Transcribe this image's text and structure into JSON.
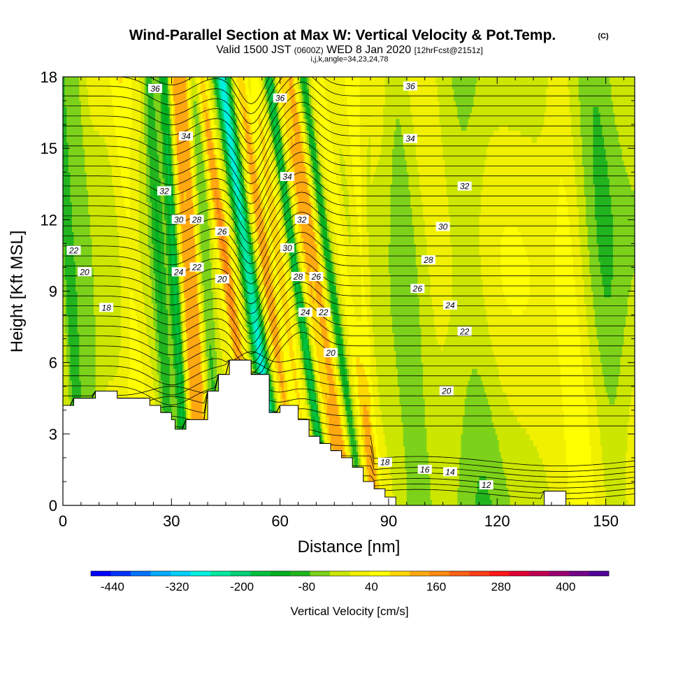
{
  "title": {
    "main": "Wind-Parallel Section at Max W: Vertical Velocity & Pot.Temp.",
    "copyright": "(C)",
    "line2_a": "Valid 1500 JST",
    "line2_b": "(0600Z)",
    "line2_c": "WED 8 Jan 2020",
    "line2_d": "[12hrFcst@2151z]",
    "line3": "i,j,k,angle=34,23,24,78"
  },
  "chart_data": {
    "type": "heatmap",
    "title": "Wind-Parallel Section at Max W: Vertical Velocity & Pot.Temp.",
    "xlabel": "Distance [nm]",
    "ylabel": "Height [Kft MSL]",
    "xlim": [
      0,
      158
    ],
    "ylim": [
      0,
      18
    ],
    "xticks": [
      0,
      30,
      60,
      90,
      120,
      150
    ],
    "yticks": [
      0,
      3,
      6,
      9,
      12,
      15,
      18
    ],
    "colorbar": {
      "label": "Vertical Velocity [cm/s]",
      "tick_labels": [
        "-440",
        "-320",
        "-200",
        "-80",
        "40",
        "160",
        "280",
        "400"
      ],
      "tick_values": [
        -440,
        -320,
        -200,
        -80,
        40,
        160,
        280,
        400
      ],
      "range": [
        -480,
        480
      ],
      "colors": [
        "#0000ff",
        "#0033ff",
        "#0073ff",
        "#00a8ff",
        "#00d0ff",
        "#00f0e0",
        "#00e8a0",
        "#00d078",
        "#00c040",
        "#00b020",
        "#22b41e",
        "#7cd21a",
        "#cce600",
        "#f0f000",
        "#ffff00",
        "#ffd800",
        "#ffa810",
        "#ff8810",
        "#ff6018",
        "#ff3c18",
        "#ff1818",
        "#e00030",
        "#c00050",
        "#9c0070",
        "#740088",
        "#500098"
      ]
    },
    "velocity_columns": [
      {
        "x": 2,
        "w": 1.8,
        "v": -100
      },
      {
        "x": 6,
        "w": 2.5,
        "v": -60
      },
      {
        "x": 19,
        "w": 3.0,
        "v": 60
      },
      {
        "x": 27,
        "w": 2.0,
        "v": -100
      },
      {
        "x": 31,
        "w": 1.4,
        "v": -150
      },
      {
        "x": 34,
        "w": 1.4,
        "v": 120
      },
      {
        "x": 36.5,
        "w": 1.4,
        "v": 130
      },
      {
        "x": 40,
        "w": 1.8,
        "v": -80
      },
      {
        "x": 46,
        "w": 1.8,
        "v": 140
      },
      {
        "x": 52,
        "w": 2.0,
        "v": -280
      },
      {
        "x": 57,
        "w": 1.8,
        "v": 120
      },
      {
        "x": 61,
        "w": 1.5,
        "v": 80
      },
      {
        "x": 65,
        "w": 1.2,
        "v": -170
      },
      {
        "x": 68.5,
        "w": 1.5,
        "v": 100
      },
      {
        "x": 71,
        "w": 1.5,
        "v": 120
      },
      {
        "x": 74.5,
        "w": 1.2,
        "v": -120
      },
      {
        "x": 78.5,
        "w": 1.8,
        "v": 70
      },
      {
        "x": 83,
        "w": 2.2,
        "v": 60
      },
      {
        "x": 95,
        "w": 4.0,
        "v": -60
      },
      {
        "x": 113,
        "w": 6.0,
        "v": -50
      },
      {
        "x": 140,
        "w": 4.0,
        "v": 40
      },
      {
        "x": 150,
        "w": 5.0,
        "v": -60
      }
    ],
    "terrain_x": [
      0,
      3,
      3,
      9,
      9,
      15,
      15,
      24,
      24,
      27,
      27,
      30,
      30,
      31,
      31,
      34,
      34,
      40,
      40,
      43,
      43,
      46,
      46,
      52,
      52,
      57,
      57,
      60,
      60,
      65,
      65,
      68,
      68,
      71,
      71,
      74,
      74,
      77,
      77,
      80,
      80,
      83,
      83,
      86,
      86,
      89,
      89,
      92,
      92,
      133,
      133,
      139,
      139,
      158
    ],
    "terrain_y": [
      4.2,
      4.2,
      4.5,
      4.5,
      4.8,
      4.8,
      4.5,
      4.5,
      4.2,
      4.2,
      3.9,
      3.9,
      3.6,
      3.6,
      3.2,
      3.2,
      3.6,
      3.6,
      4.8,
      4.8,
      5.5,
      5.5,
      6.1,
      6.1,
      5.5,
      5.5,
      3.9,
      3.9,
      4.2,
      4.2,
      3.6,
      3.6,
      2.9,
      2.9,
      2.6,
      2.6,
      2.3,
      2.3,
      2.0,
      2.0,
      1.6,
      1.6,
      1.0,
      1.0,
      0.7,
      0.7,
      0.35,
      0.35,
      0.0,
      0.0,
      0.6,
      0.6,
      0.0,
      0.0
    ],
    "contour_labels": [
      {
        "text": "36",
        "x": 25.5,
        "y": 17.5
      },
      {
        "text": "34",
        "x": 34,
        "y": 15.5
      },
      {
        "text": "32",
        "x": 28,
        "y": 13.2
      },
      {
        "text": "30",
        "x": 32,
        "y": 12.0
      },
      {
        "text": "28",
        "x": 37,
        "y": 12.0
      },
      {
        "text": "26",
        "x": 44,
        "y": 11.5
      },
      {
        "text": "24",
        "x": 32,
        "y": 9.8
      },
      {
        "text": "22",
        "x": 37,
        "y": 10.0
      },
      {
        "text": "20",
        "x": 44,
        "y": 9.5
      },
      {
        "text": "22",
        "x": 3,
        "y": 10.7
      },
      {
        "text": "20",
        "x": 6,
        "y": 9.8
      },
      {
        "text": "18",
        "x": 12,
        "y": 8.3
      },
      {
        "text": "36",
        "x": 60,
        "y": 17.1
      },
      {
        "text": "34",
        "x": 62,
        "y": 13.8
      },
      {
        "text": "32",
        "x": 66,
        "y": 12.0
      },
      {
        "text": "30",
        "x": 62,
        "y": 10.8
      },
      {
        "text": "28",
        "x": 65,
        "y": 9.6
      },
      {
        "text": "26",
        "x": 70,
        "y": 9.6
      },
      {
        "text": "24",
        "x": 67,
        "y": 8.1
      },
      {
        "text": "22",
        "x": 72,
        "y": 8.1
      },
      {
        "text": "20",
        "x": 74,
        "y": 6.4
      },
      {
        "text": "36",
        "x": 96,
        "y": 17.6
      },
      {
        "text": "34",
        "x": 96,
        "y": 15.4
      },
      {
        "text": "32",
        "x": 111,
        "y": 13.4
      },
      {
        "text": "30",
        "x": 105,
        "y": 11.7
      },
      {
        "text": "28",
        "x": 101,
        "y": 10.3
      },
      {
        "text": "26",
        "x": 98,
        "y": 9.1
      },
      {
        "text": "24",
        "x": 107,
        "y": 8.4
      },
      {
        "text": "22",
        "x": 111,
        "y": 7.3
      },
      {
        "text": "20",
        "x": 106,
        "y": 4.8
      },
      {
        "text": "18",
        "x": 89,
        "y": 1.8
      },
      {
        "text": "16",
        "x": 100,
        "y": 1.5
      },
      {
        "text": "14",
        "x": 107,
        "y": 1.4
      },
      {
        "text": "12",
        "x": 117,
        "y": 0.85
      }
    ]
  }
}
